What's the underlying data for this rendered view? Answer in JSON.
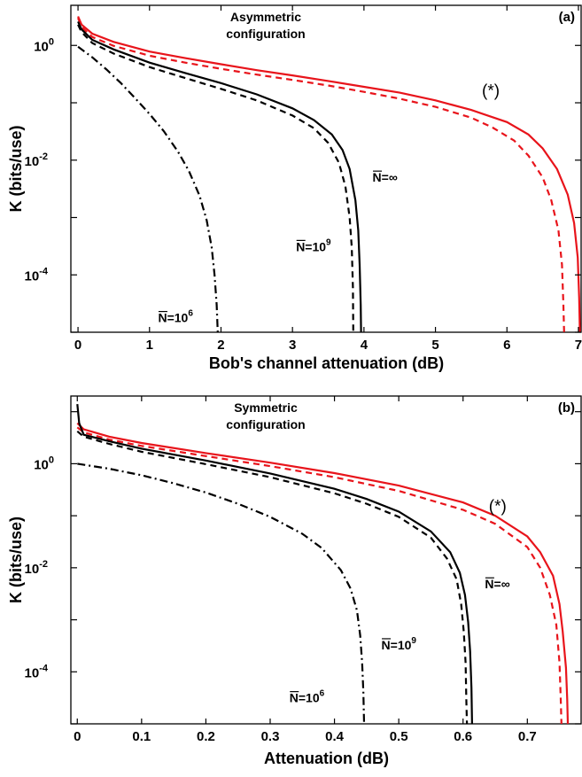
{
  "chart_data": [
    {
      "type": "line",
      "panel_tag": "(a)",
      "title_lines": [
        "Asymmetric",
        "configuration"
      ],
      "xlabel": "Bob's channel attenuation (dB)",
      "ylabel": "K (bits/use)",
      "xlim": [
        -0.1,
        7.05
      ],
      "ylim": [
        1e-05,
        5
      ],
      "yscale": "log",
      "x_ticks": [
        0,
        1,
        2,
        3,
        4,
        5,
        6,
        7
      ],
      "y_ticks": [
        {
          "value": 0.0001,
          "base": "10",
          "exp": "-4"
        },
        {
          "value": 0.01,
          "base": "10",
          "exp": "-2"
        },
        {
          "value": 1,
          "base": "10",
          "exp": "0"
        }
      ],
      "series": [
        {
          "key": "red-solid",
          "color": "#e8141b",
          "dash": "solid",
          "points": [
            [
              0,
              3.2
            ],
            [
              0.05,
              2.3
            ],
            [
              0.2,
              1.6
            ],
            [
              0.5,
              1.15
            ],
            [
              1,
              0.78
            ],
            [
              1.5,
              0.6
            ],
            [
              2,
              0.47
            ],
            [
              2.5,
              0.37
            ],
            [
              3,
              0.3
            ],
            [
              3.5,
              0.24
            ],
            [
              4,
              0.19
            ],
            [
              4.5,
              0.15
            ],
            [
              5,
              0.11
            ],
            [
              5.5,
              0.075
            ],
            [
              6,
              0.046
            ],
            [
              6.3,
              0.028
            ],
            [
              6.5,
              0.016
            ],
            [
              6.7,
              0.007
            ],
            [
              6.85,
              0.0025
            ],
            [
              6.94,
              0.0008
            ],
            [
              6.99,
              0.0002
            ],
            [
              7.01,
              4e-05
            ],
            [
              7.02,
              1e-05
            ]
          ]
        },
        {
          "key": "red-dashed",
          "color": "#e8141b",
          "dash": "7,5",
          "points": [
            [
              0,
              3.0
            ],
            [
              0.05,
              2.1
            ],
            [
              0.2,
              1.4
            ],
            [
              0.5,
              0.98
            ],
            [
              1,
              0.66
            ],
            [
              1.5,
              0.5
            ],
            [
              2,
              0.39
            ],
            [
              2.5,
              0.31
            ],
            [
              3,
              0.25
            ],
            [
              3.5,
              0.2
            ],
            [
              4,
              0.155
            ],
            [
              4.5,
              0.118
            ],
            [
              5,
              0.085
            ],
            [
              5.5,
              0.055
            ],
            [
              5.8,
              0.037
            ],
            [
              6.1,
              0.022
            ],
            [
              6.3,
              0.012
            ],
            [
              6.5,
              0.005
            ],
            [
              6.62,
              0.002
            ],
            [
              6.72,
              0.0006
            ],
            [
              6.77,
              0.00015
            ],
            [
              6.79,
              3e-05
            ],
            [
              6.8,
              1e-05
            ]
          ]
        },
        {
          "key": "black-solid",
          "color": "#000000",
          "dash": "solid",
          "points": [
            [
              0,
              2.6
            ],
            [
              0.05,
              1.9
            ],
            [
              0.2,
              1.25
            ],
            [
              0.5,
              0.85
            ],
            [
              1,
              0.5
            ],
            [
              1.5,
              0.33
            ],
            [
              2,
              0.22
            ],
            [
              2.5,
              0.14
            ],
            [
              3,
              0.08
            ],
            [
              3.3,
              0.05
            ],
            [
              3.55,
              0.028
            ],
            [
              3.7,
              0.015
            ],
            [
              3.8,
              0.007
            ],
            [
              3.88,
              0.002
            ],
            [
              3.92,
              0.0006
            ],
            [
              3.94,
              0.00015
            ],
            [
              3.955,
              3e-05
            ],
            [
              3.96,
              1e-05
            ]
          ]
        },
        {
          "key": "black-dashed",
          "color": "#000000",
          "dash": "7,5",
          "points": [
            [
              0,
              2.3
            ],
            [
              0.05,
              1.7
            ],
            [
              0.2,
              1.1
            ],
            [
              0.5,
              0.72
            ],
            [
              1,
              0.42
            ],
            [
              1.5,
              0.27
            ],
            [
              2,
              0.175
            ],
            [
              2.5,
              0.11
            ],
            [
              3,
              0.06
            ],
            [
              3.3,
              0.036
            ],
            [
              3.5,
              0.02
            ],
            [
              3.65,
              0.009
            ],
            [
              3.74,
              0.0035
            ],
            [
              3.8,
              0.001
            ],
            [
              3.83,
              0.0003
            ],
            [
              3.845,
              6e-05
            ],
            [
              3.85,
              1e-05
            ]
          ]
        },
        {
          "key": "black-dashdot",
          "color": "#000000",
          "dash": "9,4,2,4",
          "points": [
            [
              0,
              0.95
            ],
            [
              0.2,
              0.62
            ],
            [
              0.4,
              0.38
            ],
            [
              0.6,
              0.22
            ],
            [
              0.8,
              0.12
            ],
            [
              1,
              0.064
            ],
            [
              1.2,
              0.032
            ],
            [
              1.4,
              0.014
            ],
            [
              1.55,
              0.0065
            ],
            [
              1.7,
              0.0024
            ],
            [
              1.8,
              0.0009
            ],
            [
              1.87,
              0.0003
            ],
            [
              1.91,
              0.0001
            ],
            [
              1.94,
              3e-05
            ],
            [
              1.955,
              1e-05
            ]
          ]
        }
      ],
      "annotations": [
        {
          "text": "N=∞",
          "x": 4.12,
          "y": 0.0042
        },
        {
          "text": "N=10",
          "sup": "9",
          "x": 3.05,
          "y": 0.00026
        },
        {
          "text": "N=10",
          "sup": "6",
          "x": 1.12,
          "y": 1.5e-05
        }
      ],
      "star_label": {
        "text": "(*)",
        "x": 5.65,
        "y": 0.13
      }
    },
    {
      "type": "line",
      "panel_tag": "(b)",
      "title_lines": [
        "Symmetric",
        "configuration"
      ],
      "xlabel": "Attenuation  (dB)",
      "ylabel": "K (bits/use)",
      "xlim": [
        -0.01,
        0.785
      ],
      "ylim": [
        1e-05,
        20
      ],
      "yscale": "log",
      "x_ticks": [
        0,
        0.1,
        0.2,
        0.3,
        0.4,
        0.5,
        0.6,
        0.7
      ],
      "y_ticks": [
        {
          "value": 0.0001,
          "base": "10",
          "exp": "-4"
        },
        {
          "value": 0.01,
          "base": "10",
          "exp": "-2"
        },
        {
          "value": 1,
          "base": "10",
          "exp": "0"
        }
      ],
      "series": [
        {
          "key": "red-solid",
          "color": "#e8141b",
          "dash": "solid",
          "points": [
            [
              0,
              6
            ],
            [
              0.01,
              4.6
            ],
            [
              0.05,
              3.3
            ],
            [
              0.1,
              2.5
            ],
            [
              0.2,
              1.6
            ],
            [
              0.3,
              1.05
            ],
            [
              0.4,
              0.66
            ],
            [
              0.5,
              0.38
            ],
            [
              0.6,
              0.18
            ],
            [
              0.65,
              0.1
            ],
            [
              0.7,
              0.04
            ],
            [
              0.72,
              0.02
            ],
            [
              0.74,
              0.007
            ],
            [
              0.75,
              0.002
            ],
            [
              0.755,
              0.0006
            ],
            [
              0.76,
              0.00012
            ],
            [
              0.762,
              3e-05
            ],
            [
              0.763,
              1e-05
            ]
          ]
        },
        {
          "key": "red-dashed",
          "color": "#e8141b",
          "dash": "7,5",
          "points": [
            [
              0,
              5
            ],
            [
              0.01,
              4.0
            ],
            [
              0.05,
              2.9
            ],
            [
              0.1,
              2.2
            ],
            [
              0.2,
              1.4
            ],
            [
              0.3,
              0.9
            ],
            [
              0.4,
              0.55
            ],
            [
              0.5,
              0.3
            ],
            [
              0.6,
              0.13
            ],
            [
              0.65,
              0.07
            ],
            [
              0.7,
              0.025
            ],
            [
              0.72,
              0.01
            ],
            [
              0.735,
              0.003
            ],
            [
              0.745,
              0.0008
            ],
            [
              0.75,
              0.00015
            ],
            [
              0.752,
              3e-05
            ],
            [
              0.753,
              1e-05
            ]
          ]
        },
        {
          "key": "black-solid",
          "color": "#000000",
          "dash": "solid",
          "points": [
            [
              0,
              14
            ],
            [
              0.003,
              6
            ],
            [
              0.01,
              3.6
            ],
            [
              0.05,
              2.7
            ],
            [
              0.1,
              1.95
            ],
            [
              0.2,
              1.15
            ],
            [
              0.3,
              0.65
            ],
            [
              0.4,
              0.33
            ],
            [
              0.45,
              0.21
            ],
            [
              0.5,
              0.12
            ],
            [
              0.55,
              0.05
            ],
            [
              0.58,
              0.02
            ],
            [
              0.595,
              0.008
            ],
            [
              0.603,
              0.003
            ],
            [
              0.608,
              0.0009
            ],
            [
              0.611,
              0.00025
            ],
            [
              0.613,
              5e-05
            ],
            [
              0.614,
              1e-05
            ]
          ]
        },
        {
          "key": "black-dashed",
          "color": "#000000",
          "dash": "7,5",
          "points": [
            [
              0,
              4.2
            ],
            [
              0.01,
              3.3
            ],
            [
              0.05,
              2.4
            ],
            [
              0.1,
              1.7
            ],
            [
              0.2,
              0.98
            ],
            [
              0.3,
              0.55
            ],
            [
              0.4,
              0.27
            ],
            [
              0.45,
              0.17
            ],
            [
              0.5,
              0.095
            ],
            [
              0.55,
              0.038
            ],
            [
              0.575,
              0.015
            ],
            [
              0.59,
              0.006
            ],
            [
              0.597,
              0.002
            ],
            [
              0.601,
              0.0006
            ],
            [
              0.604,
              0.00015
            ],
            [
              0.605,
              3e-05
            ],
            [
              0.606,
              1e-05
            ]
          ]
        },
        {
          "key": "black-dashdot",
          "color": "#000000",
          "dash": "9,4,2,4",
          "points": [
            [
              0,
              1.0
            ],
            [
              0.05,
              0.8
            ],
            [
              0.1,
              0.6
            ],
            [
              0.15,
              0.42
            ],
            [
              0.2,
              0.28
            ],
            [
              0.25,
              0.17
            ],
            [
              0.3,
              0.095
            ],
            [
              0.35,
              0.045
            ],
            [
              0.38,
              0.024
            ],
            [
              0.41,
              0.009
            ],
            [
              0.425,
              0.004
            ],
            [
              0.435,
              0.0015
            ],
            [
              0.44,
              0.0005
            ],
            [
              0.443,
              0.00015
            ],
            [
              0.445,
              4e-05
            ],
            [
              0.446,
              1e-05
            ]
          ]
        }
      ],
      "annotations": [
        {
          "text": "N=∞",
          "x": 0.634,
          "y": 0.004
        },
        {
          "text": "N=10",
          "sup": "9",
          "x": 0.473,
          "y": 0.00027
        },
        {
          "text": "N=10",
          "sup": "6",
          "x": 0.33,
          "y": 2.6e-05
        }
      ],
      "star_label": {
        "text": "(*)",
        "x": 0.64,
        "y": 0.12
      }
    }
  ]
}
